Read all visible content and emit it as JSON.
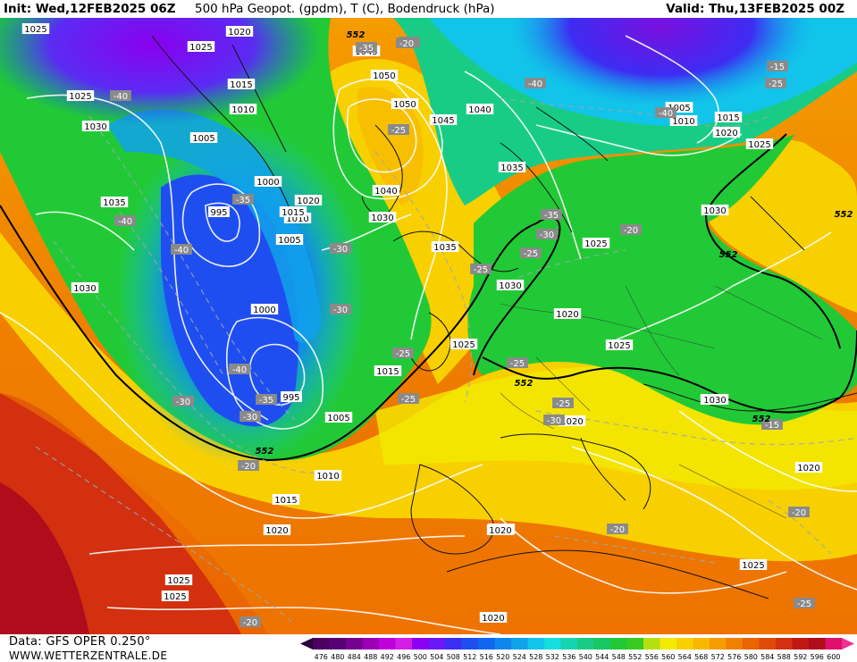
{
  "header": {
    "init": "Init: Wed,12FEB2025 06Z",
    "title": "500 hPa Geopot. (gpdm), T (C), Bodendruck (hPa)",
    "valid": "Valid: Thu,13FEB2025 00Z"
  },
  "footer": {
    "data_source": "Data: GFS OPER 0.250°",
    "website": "WWW.WETTERZENTRALE.DE"
  },
  "legend": {
    "ticks": [
      "476",
      "480",
      "484",
      "488",
      "492",
      "496",
      "500",
      "504",
      "508",
      "512",
      "516",
      "520",
      "524",
      "528",
      "532",
      "536",
      "540",
      "544",
      "548",
      "552",
      "556",
      "560",
      "564",
      "568",
      "572",
      "576",
      "580",
      "584",
      "588",
      "592",
      "596",
      "600"
    ],
    "colors": [
      "#4b0060",
      "#5a0075",
      "#76008f",
      "#9b00b5",
      "#c000d8",
      "#d31ee6",
      "#8a00f0",
      "#6a18f5",
      "#3d2cf2",
      "#1f4ef0",
      "#1066ee",
      "#0f86ee",
      "#10a2ea",
      "#12c4ea",
      "#14dede",
      "#17d4b0",
      "#18cc85",
      "#18c860",
      "#22c936",
      "#37cc1e",
      "#b4e010",
      "#f2ea00",
      "#f8d000",
      "#f8b800",
      "#f49c00",
      "#f08000",
      "#ea6400",
      "#e04a08",
      "#d2300e",
      "#c21814",
      "#b00c1c",
      "#e0106e"
    ]
  },
  "map_labels": {
    "isobars": [
      "1025",
      "1025",
      "1025",
      "1025",
      "1030",
      "1035",
      "1030",
      "1015",
      "1010",
      "1005",
      "1000",
      "995",
      "1010",
      "1015",
      "1020",
      "1005",
      "1000",
      "995",
      "1020",
      "1045",
      "1050",
      "1050",
      "1045",
      "1040",
      "1035",
      "1040",
      "1030",
      "1035",
      "1030",
      "1025",
      "1020",
      "1025",
      "1015",
      "1005",
      "1010",
      "1015",
      "1020",
      "1025",
      "1030",
      "1030",
      "1020",
      "1025",
      "1020",
      "1005",
      "1010",
      "1015",
      "1020",
      "1020",
      "1025",
      "1025",
      "1020",
      "1030",
      "1005",
      "1010",
      "1030",
      "1020",
      "1045"
    ],
    "temperatures": [
      "-40",
      "-40",
      "-40",
      "-35",
      "-40",
      "-30",
      "-30",
      "-35",
      "-30",
      "-25",
      "-25",
      "-30",
      "-35",
      "-30",
      "-30",
      "-35",
      "-35",
      "-25",
      "-25",
      "-25",
      "-40",
      "-40",
      "-25",
      "-20",
      "-20",
      "-20",
      "-25",
      "-20",
      "-15",
      "-15",
      "-20",
      "-25",
      "-20",
      "-25"
    ],
    "heights": [
      "552",
      "552",
      "552",
      "552",
      "552",
      "552"
    ]
  }
}
